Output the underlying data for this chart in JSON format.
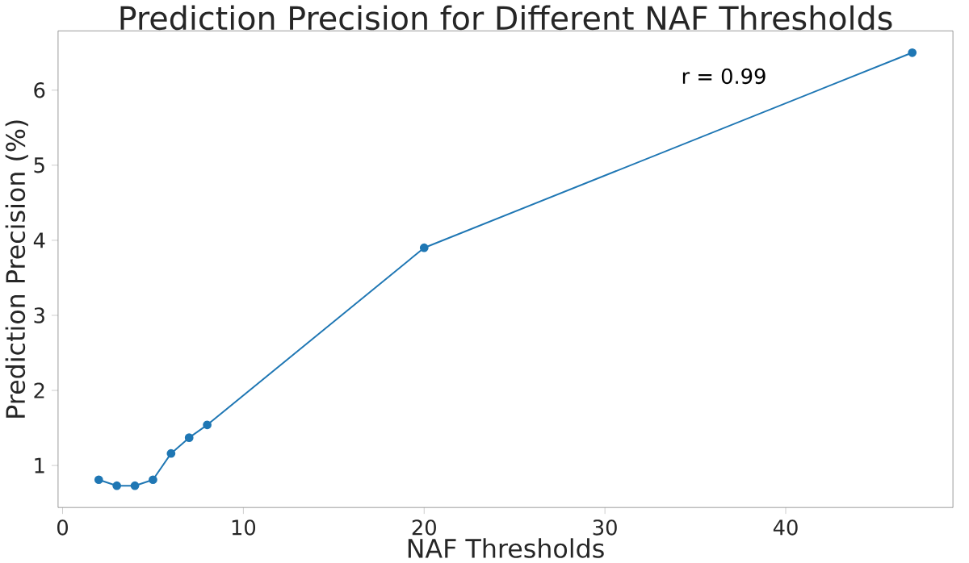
{
  "chart_data": {
    "type": "line",
    "title": "Prediction Precision for Different NAF Thresholds",
    "xlabel": "NAF Thresholds",
    "ylabel": "Prediction Precision (%)",
    "x": [
      2,
      3,
      4,
      5,
      6,
      7,
      8,
      20,
      47
    ],
    "series": [
      {
        "color": "#1f77b4",
        "values": [
          0.81,
          0.73,
          0.73,
          0.81,
          1.16,
          1.37,
          1.54,
          3.9,
          6.5
        ]
      }
    ],
    "xlim": [
      -0.25,
      49.25
    ],
    "ylim": [
      0.44,
      6.79
    ],
    "xticks": [
      0,
      10,
      20,
      30,
      40
    ],
    "yticks": [
      1,
      2,
      3,
      4,
      5,
      6
    ],
    "marker": "circle",
    "grid": false,
    "annotations": [
      "r = 0.99"
    ]
  }
}
